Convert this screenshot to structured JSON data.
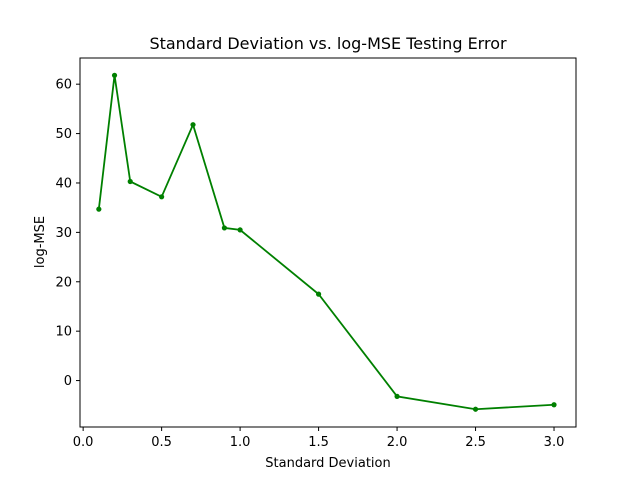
{
  "chart_data": {
    "type": "line",
    "title": "Standard Deviation vs. log-MSE Testing Error",
    "xlabel": "Standard Deviation",
    "ylabel": "log-MSE",
    "xlim": [
      -0.02,
      3.14
    ],
    "ylim": [
      -9.4,
      65.3
    ],
    "xticks": [
      0.0,
      0.5,
      1.0,
      1.5,
      2.0,
      2.5,
      3.0
    ],
    "xtick_labels": [
      "0.0",
      "0.5",
      "1.0",
      "1.5",
      "2.0",
      "2.5",
      "3.0"
    ],
    "yticks": [
      0,
      10,
      20,
      30,
      40,
      50,
      60
    ],
    "ytick_labels": [
      "0",
      "10",
      "20",
      "30",
      "40",
      "50",
      "60"
    ],
    "grid": false,
    "legend": false,
    "series": [
      {
        "color": "#008000",
        "marker": "circle",
        "x": [
          0.1,
          0.2,
          0.3,
          0.5,
          0.7,
          0.9,
          1.0,
          1.5,
          2.0,
          2.5,
          3.0
        ],
        "y": [
          34.7,
          61.8,
          40.3,
          37.2,
          51.8,
          30.9,
          30.5,
          17.5,
          -3.2,
          -5.8,
          -4.9
        ]
      }
    ]
  }
}
